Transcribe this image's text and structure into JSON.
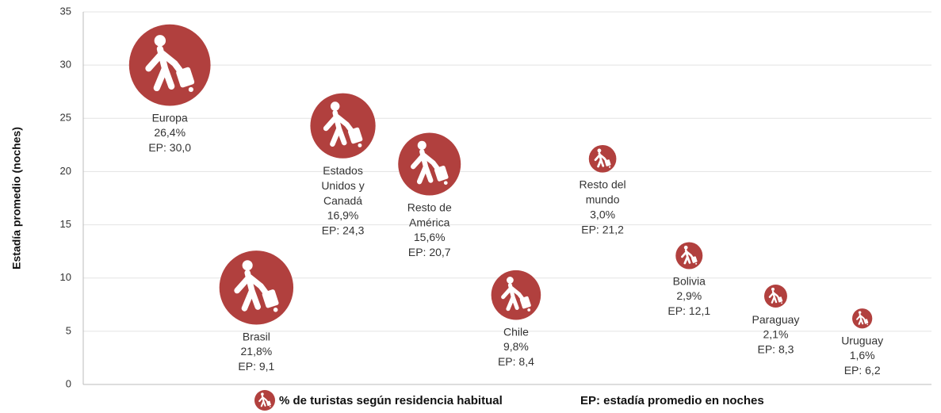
{
  "chart_data": {
    "type": "bubble",
    "y_label": "Estadía promedio (noches)",
    "legend": [
      "% de turistas según residencia habitual",
      "EP: estadía promedio en noches"
    ],
    "color": "#b1403e",
    "categories": [
      "Europa",
      "Brasil",
      "Estados Unidos y Canadá",
      "Resto de América",
      "Chile",
      "Resto del mundo",
      "Bolivia",
      "Paraguay",
      "Uruguay"
    ],
    "x": [
      1,
      2,
      3,
      4,
      5,
      6,
      7,
      8,
      9
    ],
    "values": [
      30.0,
      9.1,
      24.3,
      20.7,
      8.4,
      21.2,
      12.1,
      8.3,
      6.2
    ],
    "value_labels": [
      "EP: 30,0",
      "EP: 9,1",
      "EP: 24,3",
      "EP: 20,7",
      "EP: 8,4",
      "EP: 21,2",
      "EP: 12,1",
      "EP: 8,3",
      "EP: 6,2"
    ],
    "sizes": [
      26.4,
      21.8,
      16.9,
      15.6,
      9.8,
      3.0,
      2.9,
      2.1,
      1.6
    ],
    "size_labels": [
      "26,4%",
      "21,8%",
      "16,9%",
      "15,6%",
      "9,8%",
      "3,0%",
      "2,9%",
      "2,1%",
      "1,6%"
    ],
    "xlim": [
      0,
      9.8
    ],
    "ylim": [
      0,
      35
    ],
    "yticks": [
      0,
      5,
      10,
      15,
      20,
      25,
      30,
      35
    ],
    "grid": true
  }
}
